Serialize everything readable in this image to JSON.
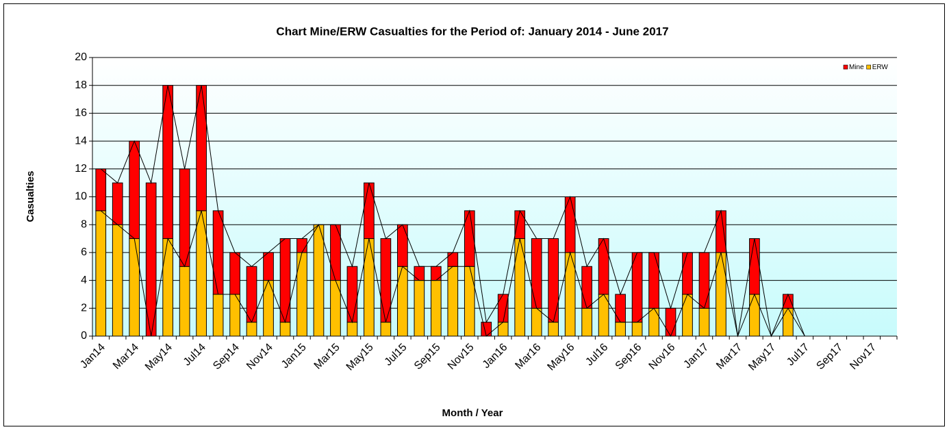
{
  "chart_data": {
    "type": "bar",
    "stacked": true,
    "title": "Chart Mine/ERW Casualties for the Period of: January 2014 - June 2017",
    "x_label": "Month / Year",
    "y_label": "Casualties",
    "categories": [
      "Jan14",
      null,
      "Mar14",
      null,
      "May14",
      null,
      "Jul14",
      null,
      "Sep14",
      null,
      "Nov14",
      null,
      "Jan15",
      null,
      "Mar15",
      null,
      "May15",
      null,
      "Jul15",
      null,
      "Sep15",
      null,
      "Nov15",
      null,
      "Jan16",
      null,
      "Mar16",
      null,
      "May16",
      null,
      "Jul16",
      null,
      "Sep16",
      null,
      "Nov16",
      null,
      "Jan17",
      null,
      "Mar17",
      null,
      "May17",
      null,
      "Jul17",
      null,
      "Sep17",
      null,
      "Nov17",
      null
    ],
    "series": [
      {
        "name": "Mine",
        "color": "#ff0000",
        "values": [
          3,
          3,
          7,
          11,
          11,
          7,
          9,
          6,
          3,
          4,
          2,
          6,
          1,
          0,
          4,
          4,
          4,
          6,
          3,
          1,
          1,
          1,
          4,
          1,
          2,
          2,
          5,
          6,
          4,
          3,
          4,
          2,
          5,
          4,
          2,
          3,
          4,
          3,
          0,
          4,
          0,
          1,
          0,
          null,
          null,
          null,
          null,
          null
        ]
      },
      {
        "name": "ERW",
        "color": "#ffc000",
        "values": [
          9,
          8,
          7,
          0,
          7,
          5,
          9,
          3,
          3,
          1,
          4,
          1,
          6,
          8,
          4,
          1,
          7,
          1,
          5,
          4,
          4,
          5,
          5,
          0,
          1,
          7,
          2,
          1,
          6,
          2,
          3,
          1,
          1,
          2,
          0,
          3,
          2,
          6,
          0,
          3,
          0,
          2,
          0,
          null,
          null,
          null,
          null,
          null
        ]
      }
    ],
    "ylim": [
      0,
      20
    ],
    "yticks": [
      0,
      2,
      4,
      6,
      8,
      10,
      12,
      14,
      16,
      18,
      20
    ],
    "grid": true,
    "legend": "top-right"
  }
}
